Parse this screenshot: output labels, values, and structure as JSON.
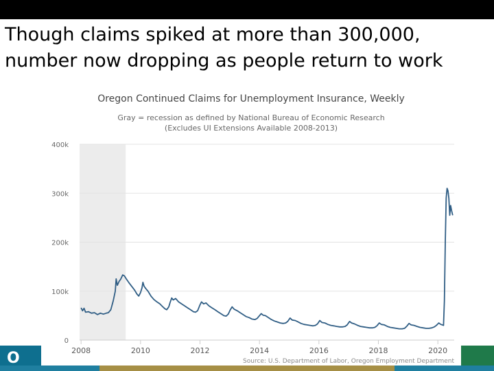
{
  "slide": {
    "headline": "Though claims spiked at more than 300,000, number now dropping as people return to work",
    "logo_glyph": "O"
  },
  "chart_data": {
    "type": "line",
    "title": "Oregon Continued Claims for Unemployment Insurance, Weekly",
    "subtitle_line1": "Gray = recession as defined by National Bureau of Economic Research",
    "subtitle_line2": "(Excludes UI Extensions Available 2008-2013)",
    "source": "Source: U.S. Department of Labor, Oregon Employment Department",
    "xlabel": "",
    "ylabel": "",
    "xlim": [
      2007.95,
      2020.55
    ],
    "ylim": [
      0,
      400000
    ],
    "y_ticks": [
      {
        "value": 0,
        "label": "0"
      },
      {
        "value": 100000,
        "label": "100k"
      },
      {
        "value": 200000,
        "label": "200k"
      },
      {
        "value": 300000,
        "label": "300k"
      },
      {
        "value": 400000,
        "label": "400k"
      }
    ],
    "x_ticks": [
      {
        "value": 2008,
        "label": "2008"
      },
      {
        "value": 2010,
        "label": "2010"
      },
      {
        "value": 2012,
        "label": "2012"
      },
      {
        "value": 2014,
        "label": "2014"
      },
      {
        "value": 2016,
        "label": "2016"
      },
      {
        "value": 2018,
        "label": "2018"
      },
      {
        "value": 2020,
        "label": "2020"
      }
    ],
    "recession": {
      "start": 2007.95,
      "end": 2009.5
    },
    "grid": true,
    "colors": {
      "line": "#2f5d84",
      "recession": "#ececec",
      "grid": "#e3e3e3",
      "text": "#555555",
      "title": "#444444"
    },
    "series": [
      {
        "name": "Continued Claims",
        "points": [
          [
            2008.0,
            66000
          ],
          [
            2008.05,
            60000
          ],
          [
            2008.1,
            65000
          ],
          [
            2008.15,
            57000
          ],
          [
            2008.25,
            58000
          ],
          [
            2008.35,
            55000
          ],
          [
            2008.45,
            56000
          ],
          [
            2008.55,
            52000
          ],
          [
            2008.65,
            55000
          ],
          [
            2008.75,
            53000
          ],
          [
            2008.85,
            55000
          ],
          [
            2008.92,
            56000
          ],
          [
            2009.0,
            62000
          ],
          [
            2009.08,
            80000
          ],
          [
            2009.15,
            100000
          ],
          [
            2009.18,
            125000
          ],
          [
            2009.22,
            112000
          ],
          [
            2009.28,
            120000
          ],
          [
            2009.33,
            124000
          ],
          [
            2009.4,
            133000
          ],
          [
            2009.46,
            131000
          ],
          [
            2009.52,
            125000
          ],
          [
            2009.6,
            118000
          ],
          [
            2009.7,
            110000
          ],
          [
            2009.8,
            102000
          ],
          [
            2009.88,
            94000
          ],
          [
            2009.94,
            90000
          ],
          [
            2010.0,
            97000
          ],
          [
            2010.05,
            107000
          ],
          [
            2010.08,
            118000
          ],
          [
            2010.12,
            110000
          ],
          [
            2010.18,
            105000
          ],
          [
            2010.25,
            100000
          ],
          [
            2010.35,
            90000
          ],
          [
            2010.45,
            83000
          ],
          [
            2010.55,
            78000
          ],
          [
            2010.65,
            74000
          ],
          [
            2010.75,
            68000
          ],
          [
            2010.82,
            64000
          ],
          [
            2010.88,
            62000
          ],
          [
            2010.95,
            68000
          ],
          [
            2011.0,
            78000
          ],
          [
            2011.05,
            86000
          ],
          [
            2011.1,
            82000
          ],
          [
            2011.18,
            85000
          ],
          [
            2011.28,
            78000
          ],
          [
            2011.38,
            74000
          ],
          [
            2011.48,
            70000
          ],
          [
            2011.58,
            66000
          ],
          [
            2011.68,
            62000
          ],
          [
            2011.78,
            58000
          ],
          [
            2011.85,
            57000
          ],
          [
            2011.92,
            60000
          ],
          [
            2012.0,
            72000
          ],
          [
            2012.05,
            78000
          ],
          [
            2012.12,
            74000
          ],
          [
            2012.2,
            76000
          ],
          [
            2012.3,
            70000
          ],
          [
            2012.4,
            66000
          ],
          [
            2012.5,
            62000
          ],
          [
            2012.6,
            58000
          ],
          [
            2012.7,
            54000
          ],
          [
            2012.8,
            50000
          ],
          [
            2012.88,
            49000
          ],
          [
            2012.95,
            53000
          ],
          [
            2013.02,
            62000
          ],
          [
            2013.08,
            68000
          ],
          [
            2013.15,
            63000
          ],
          [
            2013.25,
            60000
          ],
          [
            2013.35,
            56000
          ],
          [
            2013.45,
            52000
          ],
          [
            2013.55,
            48000
          ],
          [
            2013.65,
            46000
          ],
          [
            2013.75,
            43000
          ],
          [
            2013.85,
            42000
          ],
          [
            2013.92,
            44000
          ],
          [
            2014.0,
            50000
          ],
          [
            2014.06,
            54000
          ],
          [
            2014.12,
            51000
          ],
          [
            2014.2,
            50000
          ],
          [
            2014.3,
            46000
          ],
          [
            2014.4,
            42000
          ],
          [
            2014.5,
            39000
          ],
          [
            2014.6,
            37000
          ],
          [
            2014.7,
            35000
          ],
          [
            2014.8,
            34000
          ],
          [
            2014.88,
            35000
          ],
          [
            2014.95,
            38000
          ],
          [
            2015.03,
            45000
          ],
          [
            2015.1,
            41000
          ],
          [
            2015.2,
            40000
          ],
          [
            2015.3,
            37000
          ],
          [
            2015.4,
            34000
          ],
          [
            2015.5,
            32000
          ],
          [
            2015.6,
            31000
          ],
          [
            2015.7,
            30000
          ],
          [
            2015.8,
            29000
          ],
          [
            2015.88,
            30000
          ],
          [
            2015.95,
            33000
          ],
          [
            2016.03,
            40000
          ],
          [
            2016.1,
            36000
          ],
          [
            2016.2,
            35000
          ],
          [
            2016.3,
            32000
          ],
          [
            2016.4,
            30000
          ],
          [
            2016.5,
            29000
          ],
          [
            2016.6,
            28000
          ],
          [
            2016.7,
            27000
          ],
          [
            2016.8,
            27000
          ],
          [
            2016.88,
            28000
          ],
          [
            2016.95,
            31000
          ],
          [
            2017.03,
            38000
          ],
          [
            2017.1,
            35000
          ],
          [
            2017.2,
            33000
          ],
          [
            2017.3,
            30000
          ],
          [
            2017.4,
            28000
          ],
          [
            2017.5,
            27000
          ],
          [
            2017.6,
            26000
          ],
          [
            2017.7,
            25000
          ],
          [
            2017.8,
            25000
          ],
          [
            2017.88,
            26000
          ],
          [
            2017.95,
            29000
          ],
          [
            2018.03,
            35000
          ],
          [
            2018.1,
            32000
          ],
          [
            2018.2,
            31000
          ],
          [
            2018.3,
            28000
          ],
          [
            2018.4,
            26000
          ],
          [
            2018.5,
            25000
          ],
          [
            2018.6,
            24000
          ],
          [
            2018.7,
            23000
          ],
          [
            2018.8,
            23000
          ],
          [
            2018.88,
            24000
          ],
          [
            2018.95,
            28000
          ],
          [
            2019.03,
            34000
          ],
          [
            2019.1,
            31000
          ],
          [
            2019.2,
            30000
          ],
          [
            2019.3,
            28000
          ],
          [
            2019.4,
            26000
          ],
          [
            2019.5,
            25000
          ],
          [
            2019.6,
            24000
          ],
          [
            2019.7,
            24000
          ],
          [
            2019.8,
            25000
          ],
          [
            2019.88,
            27000
          ],
          [
            2019.95,
            30000
          ],
          [
            2020.03,
            35000
          ],
          [
            2020.1,
            32000
          ],
          [
            2020.15,
            31000
          ],
          [
            2020.19,
            30000
          ],
          [
            2020.22,
            80000
          ],
          [
            2020.25,
            200000
          ],
          [
            2020.28,
            290000
          ],
          [
            2020.31,
            310000
          ],
          [
            2020.34,
            305000
          ],
          [
            2020.37,
            290000
          ],
          [
            2020.4,
            255000
          ],
          [
            2020.43,
            275000
          ],
          [
            2020.46,
            265000
          ],
          [
            2020.5,
            255000
          ]
        ]
      }
    ]
  }
}
